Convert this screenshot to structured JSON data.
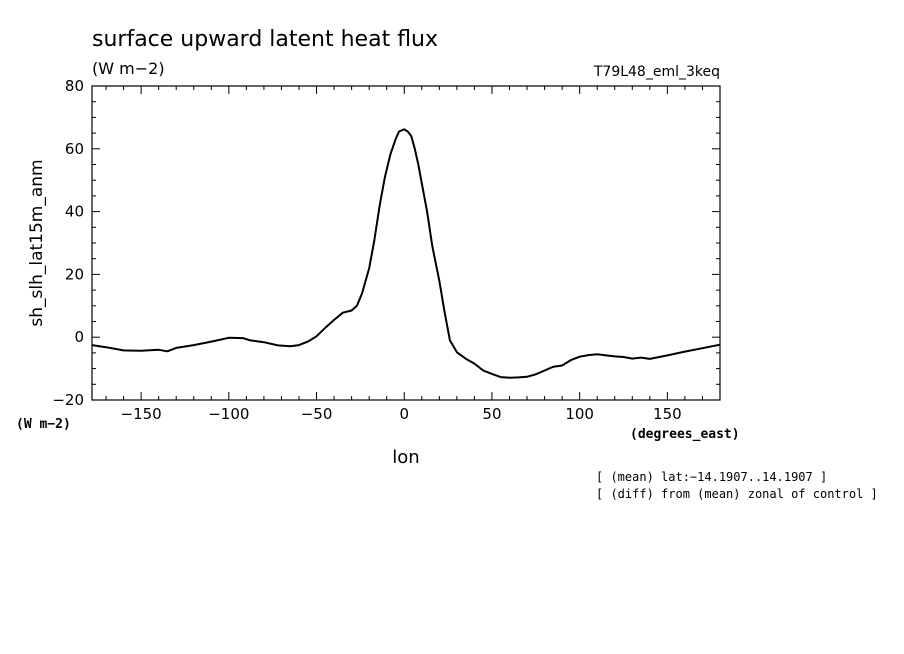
{
  "chart_data": {
    "type": "line",
    "title": "surface upward latent heat flux",
    "subtitle": "(W m−2)",
    "run_label": "T79L48_eml_3keq",
    "ylabel": "sh_slh_lat15m_anm",
    "ylabel_units": "(W m−2)",
    "xlabel": "lon",
    "xlabel_units": "(degrees_east)",
    "notes": [
      "[ (mean) lat:−14.1907..14.1907 ]",
      "[ (diff) from (mean) zonal of control ]"
    ],
    "xlim": [
      -178,
      180
    ],
    "ylim": [
      -20,
      80
    ],
    "xticks": [
      -150,
      -100,
      -50,
      0,
      50,
      100,
      150
    ],
    "xtick_labels": [
      "−150",
      "−100",
      "−50",
      "0",
      "50",
      "100",
      "150"
    ],
    "yticks": [
      -20,
      0,
      20,
      40,
      60,
      80
    ],
    "ytick_labels": [
      "−20",
      "0",
      "20",
      "40",
      "60",
      "80"
    ],
    "grid": false,
    "series": [
      {
        "x": [
          -178,
          -170,
          -160,
          -150,
          -140,
          -135,
          -130,
          -120,
          -110,
          -100,
          -92,
          -88,
          -80,
          -72,
          -65,
          -60,
          -55,
          -50,
          -45,
          -40,
          -35,
          -30,
          -27,
          -24,
          -20,
          -17,
          -14,
          -11,
          -8,
          -5,
          -3,
          -1,
          0,
          2,
          4,
          6,
          8,
          10,
          13,
          16,
          20,
          23,
          26,
          30,
          35,
          40,
          45,
          50,
          55,
          60,
          65,
          70,
          75,
          80,
          85,
          90,
          95,
          100,
          105,
          110,
          115,
          120,
          125,
          130,
          135,
          140,
          150,
          160,
          170,
          180
        ],
        "y": [
          -2.5,
          -3.2,
          -4.2,
          -4.3,
          -4.0,
          -4.5,
          -3.4,
          -2.5,
          -1.4,
          -0.2,
          -0.3,
          -1.0,
          -1.6,
          -2.6,
          -2.9,
          -2.5,
          -1.4,
          0.3,
          3.0,
          5.5,
          7.8,
          8.5,
          10.0,
          14.0,
          22.0,
          31.0,
          42.0,
          51.0,
          58.0,
          63.0,
          65.5,
          66.0,
          66.2,
          65.5,
          64.0,
          60.0,
          55.0,
          49.0,
          40.0,
          29.0,
          18.0,
          8.0,
          -1.0,
          -4.8,
          -6.8,
          -8.4,
          -10.6,
          -11.7,
          -12.7,
          -12.9,
          -12.8,
          -12.6,
          -11.8,
          -10.6,
          -9.4,
          -9.0,
          -7.3,
          -6.2,
          -5.7,
          -5.4,
          -5.8,
          -6.1,
          -6.3,
          -6.8,
          -6.5,
          -6.9,
          -5.8,
          -4.6,
          -3.5,
          -2.4
        ]
      }
    ]
  }
}
